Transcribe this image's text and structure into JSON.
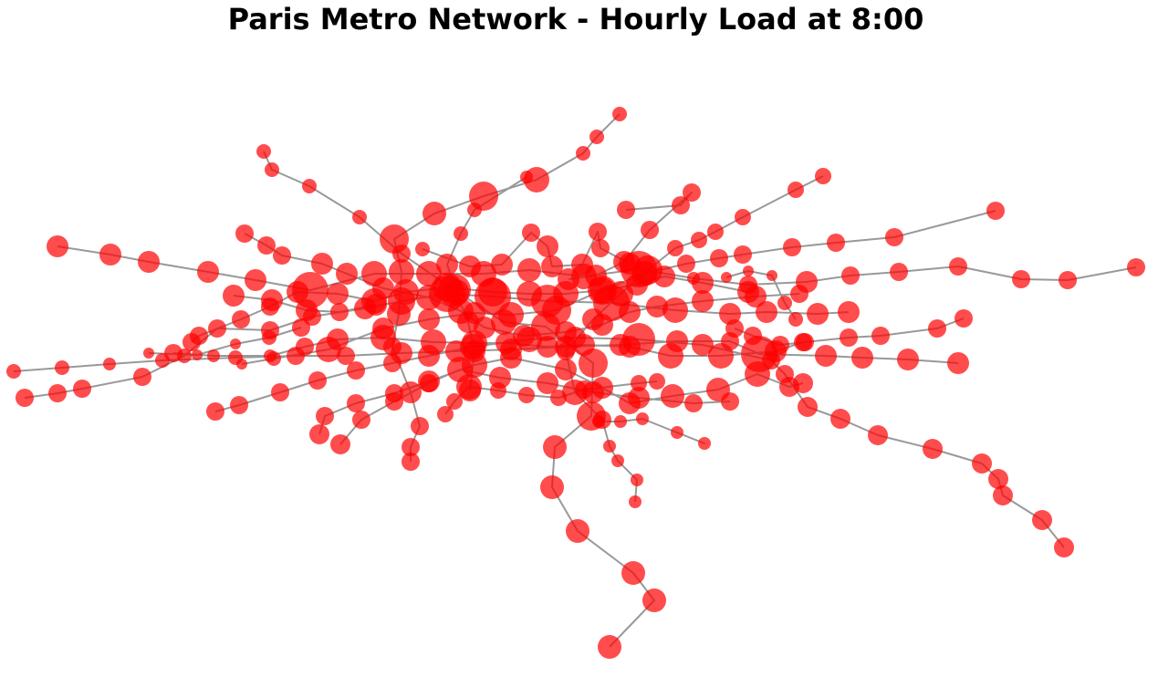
{
  "title": "Paris Metro Network - Hourly Load at 8:00",
  "colors": {
    "node": "#ff0000",
    "edge": "#999999"
  }
}
